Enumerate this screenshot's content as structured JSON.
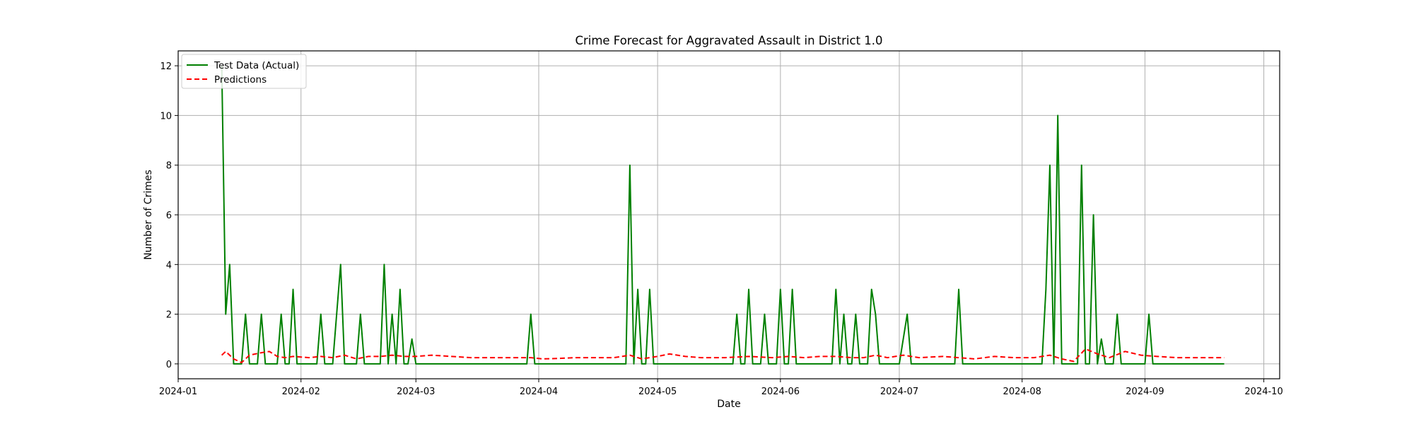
{
  "chart_data": {
    "type": "line",
    "title": "Crime Forecast for Aggravated Assault in District 1.0",
    "xlabel": "Date",
    "ylabel": "Number of Crimes",
    "xlim": [
      "2024-01-01",
      "2024-10-05"
    ],
    "ylim": [
      -0.6,
      12.6
    ],
    "grid": true,
    "legend_position": "top-left",
    "x_ticks": [
      "2024-01",
      "2024-02",
      "2024-03",
      "2024-04",
      "2024-05",
      "2024-06",
      "2024-07",
      "2024-08",
      "2024-09",
      "2024-10"
    ],
    "y_ticks": [
      0,
      2,
      4,
      6,
      8,
      10,
      12
    ],
    "series": [
      {
        "name": "Test Data (Actual)",
        "color": "#008000",
        "style": "solid",
        "points": [
          [
            "2024-01-12",
            12
          ],
          [
            "2024-01-13",
            2
          ],
          [
            "2024-01-14",
            4
          ],
          [
            "2024-01-15",
            0
          ],
          [
            "2024-01-17",
            0
          ],
          [
            "2024-01-18",
            2
          ],
          [
            "2024-01-19",
            0
          ],
          [
            "2024-01-21",
            0
          ],
          [
            "2024-01-22",
            2
          ],
          [
            "2024-01-23",
            0
          ],
          [
            "2024-01-26",
            0
          ],
          [
            "2024-01-27",
            2
          ],
          [
            "2024-01-28",
            0
          ],
          [
            "2024-01-29",
            0
          ],
          [
            "2024-01-30",
            3
          ],
          [
            "2024-01-31",
            0
          ],
          [
            "2024-02-05",
            0
          ],
          [
            "2024-02-06",
            2
          ],
          [
            "2024-02-07",
            0
          ],
          [
            "2024-02-09",
            0
          ],
          [
            "2024-02-11",
            4
          ],
          [
            "2024-02-12",
            0
          ],
          [
            "2024-02-15",
            0
          ],
          [
            "2024-02-16",
            2
          ],
          [
            "2024-02-17",
            0
          ],
          [
            "2024-02-21",
            0
          ],
          [
            "2024-02-22",
            4
          ],
          [
            "2024-02-23",
            0
          ],
          [
            "2024-02-24",
            2
          ],
          [
            "2024-02-25",
            0
          ],
          [
            "2024-02-26",
            3
          ],
          [
            "2024-02-27",
            0
          ],
          [
            "2024-02-28",
            0
          ],
          [
            "2024-02-29",
            1
          ],
          [
            "2024-03-01",
            0
          ],
          [
            "2024-03-29",
            0
          ],
          [
            "2024-03-30",
            2
          ],
          [
            "2024-03-31",
            0
          ],
          [
            "2024-04-23",
            0
          ],
          [
            "2024-04-24",
            8
          ],
          [
            "2024-04-25",
            0
          ],
          [
            "2024-04-26",
            3
          ],
          [
            "2024-04-27",
            0
          ],
          [
            "2024-04-28",
            0
          ],
          [
            "2024-04-29",
            3
          ],
          [
            "2024-04-30",
            0
          ],
          [
            "2024-05-20",
            0
          ],
          [
            "2024-05-21",
            2
          ],
          [
            "2024-05-22",
            0
          ],
          [
            "2024-05-23",
            0
          ],
          [
            "2024-05-24",
            3
          ],
          [
            "2024-05-25",
            0
          ],
          [
            "2024-05-27",
            0
          ],
          [
            "2024-05-28",
            2
          ],
          [
            "2024-05-29",
            0
          ],
          [
            "2024-05-31",
            0
          ],
          [
            "2024-06-01",
            3
          ],
          [
            "2024-06-02",
            0
          ],
          [
            "2024-06-03",
            0
          ],
          [
            "2024-06-04",
            3
          ],
          [
            "2024-06-05",
            0
          ],
          [
            "2024-06-14",
            0
          ],
          [
            "2024-06-15",
            3
          ],
          [
            "2024-06-16",
            0
          ],
          [
            "2024-06-17",
            2
          ],
          [
            "2024-06-18",
            0
          ],
          [
            "2024-06-19",
            0
          ],
          [
            "2024-06-20",
            2
          ],
          [
            "2024-06-21",
            0
          ],
          [
            "2024-06-23",
            0
          ],
          [
            "2024-06-24",
            3
          ],
          [
            "2024-06-25",
            2
          ],
          [
            "2024-06-26",
            0
          ],
          [
            "2024-07-01",
            0
          ],
          [
            "2024-07-03",
            2
          ],
          [
            "2024-07-04",
            0
          ],
          [
            "2024-07-15",
            0
          ],
          [
            "2024-07-16",
            3
          ],
          [
            "2024-07-17",
            0
          ],
          [
            "2024-08-06",
            0
          ],
          [
            "2024-08-07",
            3
          ],
          [
            "2024-08-08",
            8
          ],
          [
            "2024-08-09",
            0
          ],
          [
            "2024-08-10",
            10
          ],
          [
            "2024-08-11",
            0
          ],
          [
            "2024-08-14",
            0
          ],
          [
            "2024-08-15",
            0
          ],
          [
            "2024-08-16",
            8
          ],
          [
            "2024-08-17",
            0
          ],
          [
            "2024-08-18",
            0
          ],
          [
            "2024-08-19",
            6
          ],
          [
            "2024-08-20",
            0
          ],
          [
            "2024-08-21",
            1
          ],
          [
            "2024-08-22",
            0
          ],
          [
            "2024-08-24",
            0
          ],
          [
            "2024-08-25",
            2
          ],
          [
            "2024-08-26",
            0
          ],
          [
            "2024-09-01",
            0
          ],
          [
            "2024-09-02",
            2
          ],
          [
            "2024-09-03",
            0
          ],
          [
            "2024-09-21",
            0
          ]
        ]
      },
      {
        "name": "Predictions",
        "color": "#ff0000",
        "style": "dashed",
        "points": [
          [
            "2024-01-12",
            0.35
          ],
          [
            "2024-01-13",
            0.5
          ],
          [
            "2024-01-15",
            0.2
          ],
          [
            "2024-01-17",
            0.05
          ],
          [
            "2024-01-19",
            0.35
          ],
          [
            "2024-01-22",
            0.45
          ],
          [
            "2024-01-24",
            0.5
          ],
          [
            "2024-01-26",
            0.3
          ],
          [
            "2024-01-28",
            0.25
          ],
          [
            "2024-01-30",
            0.3
          ],
          [
            "2024-02-03",
            0.25
          ],
          [
            "2024-02-06",
            0.3
          ],
          [
            "2024-02-09",
            0.25
          ],
          [
            "2024-02-12",
            0.35
          ],
          [
            "2024-02-15",
            0.2
          ],
          [
            "2024-02-18",
            0.3
          ],
          [
            "2024-02-21",
            0.3
          ],
          [
            "2024-02-24",
            0.35
          ],
          [
            "2024-02-27",
            0.3
          ],
          [
            "2024-03-01",
            0.3
          ],
          [
            "2024-03-05",
            0.35
          ],
          [
            "2024-03-10",
            0.3
          ],
          [
            "2024-03-15",
            0.25
          ],
          [
            "2024-03-20",
            0.25
          ],
          [
            "2024-03-25",
            0.25
          ],
          [
            "2024-03-30",
            0.25
          ],
          [
            "2024-04-02",
            0.2
          ],
          [
            "2024-04-06",
            0.22
          ],
          [
            "2024-04-10",
            0.25
          ],
          [
            "2024-04-15",
            0.25
          ],
          [
            "2024-04-20",
            0.25
          ],
          [
            "2024-04-24",
            0.35
          ],
          [
            "2024-04-27",
            0.2
          ],
          [
            "2024-05-01",
            0.3
          ],
          [
            "2024-05-04",
            0.4
          ],
          [
            "2024-05-08",
            0.3
          ],
          [
            "2024-05-12",
            0.25
          ],
          [
            "2024-05-18",
            0.25
          ],
          [
            "2024-05-24",
            0.3
          ],
          [
            "2024-05-30",
            0.25
          ],
          [
            "2024-06-03",
            0.3
          ],
          [
            "2024-06-07",
            0.25
          ],
          [
            "2024-06-11",
            0.3
          ],
          [
            "2024-06-15",
            0.3
          ],
          [
            "2024-06-19",
            0.25
          ],
          [
            "2024-06-22",
            0.25
          ],
          [
            "2024-06-25",
            0.35
          ],
          [
            "2024-06-28",
            0.25
          ],
          [
            "2024-07-02",
            0.35
          ],
          [
            "2024-07-06",
            0.25
          ],
          [
            "2024-07-12",
            0.3
          ],
          [
            "2024-07-16",
            0.25
          ],
          [
            "2024-07-20",
            0.2
          ],
          [
            "2024-07-25",
            0.3
          ],
          [
            "2024-07-30",
            0.25
          ],
          [
            "2024-08-04",
            0.25
          ],
          [
            "2024-08-08",
            0.35
          ],
          [
            "2024-08-11",
            0.2
          ],
          [
            "2024-08-14",
            0.1
          ],
          [
            "2024-08-17",
            0.6
          ],
          [
            "2024-08-20",
            0.4
          ],
          [
            "2024-08-23",
            0.25
          ],
          [
            "2024-08-27",
            0.5
          ],
          [
            "2024-08-31",
            0.35
          ],
          [
            "2024-09-04",
            0.3
          ],
          [
            "2024-09-09",
            0.25
          ],
          [
            "2024-09-14",
            0.25
          ],
          [
            "2024-09-21",
            0.25
          ]
        ]
      }
    ]
  }
}
